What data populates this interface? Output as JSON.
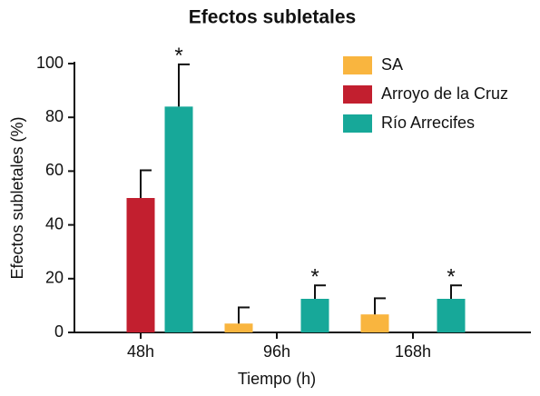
{
  "chart_data": {
    "type": "bar",
    "title": "Efectos subletales",
    "x_label": "Tiempo (h)",
    "y_label": "Efectos subletales (%)",
    "categories": [
      "48h",
      "96h",
      "168h"
    ],
    "series": [
      {
        "name": "SA",
        "color": "#f9b53f",
        "values": [
          null,
          3.3,
          6.7
        ],
        "errors": [
          null,
          6,
          6
        ],
        "annotations": [
          null,
          null,
          null
        ]
      },
      {
        "name": "Arroyo de la Cruz",
        "color": "#c21f2f",
        "values": [
          50,
          null,
          null
        ],
        "errors": [
          10.3,
          null,
          null
        ],
        "annotations": [
          null,
          null,
          null
        ]
      },
      {
        "name": "Río Arrecifes",
        "color": "#17a899",
        "values": [
          84,
          12.5,
          12.5
        ],
        "errors": [
          15.7,
          5,
          5
        ],
        "annotations": [
          "*",
          "*",
          "*"
        ]
      }
    ],
    "ylim": [
      0,
      100
    ],
    "yticks": [
      0,
      20,
      40,
      60,
      80,
      100
    ],
    "legend": "top-right"
  }
}
